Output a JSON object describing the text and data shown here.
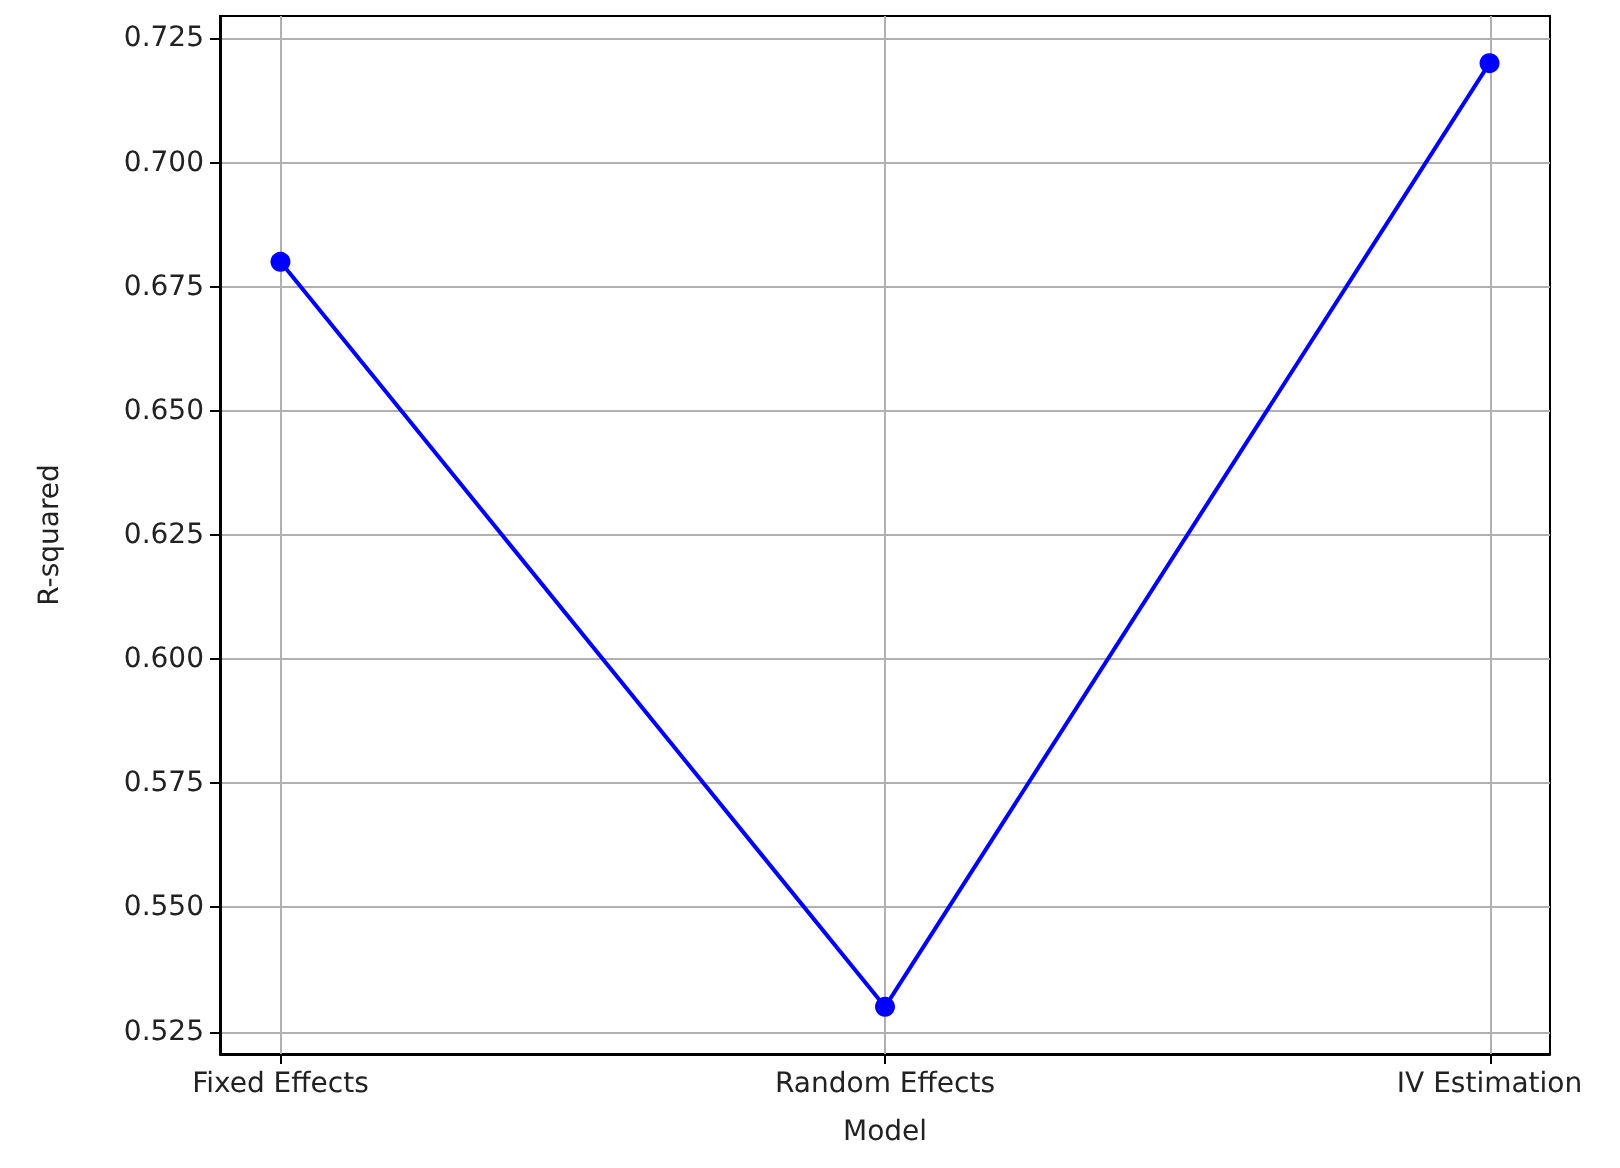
{
  "chart_data": {
    "type": "line",
    "xlabel": "Model",
    "ylabel": "R-squared",
    "categories": [
      "Fixed Effects",
      "Random Effects",
      "IV Estimation"
    ],
    "series": [
      {
        "color": "#0000ff",
        "values": [
          0.68,
          0.53,
          0.72
        ]
      }
    ],
    "ylim": [
      0.5205,
      0.7295
    ],
    "yticks": [
      0.525,
      {
        "value": 0.55,
        "label": "0.550"
      },
      0.575,
      {
        "value": 0.6,
        "label": "0.600"
      },
      0.625,
      {
        "value": 0.65,
        "label": "0.650"
      },
      0.675,
      {
        "value": 0.7,
        "label": "0.700"
      },
      0.725
    ],
    "grid": true,
    "marker": "circle",
    "line_style": "solid"
  }
}
